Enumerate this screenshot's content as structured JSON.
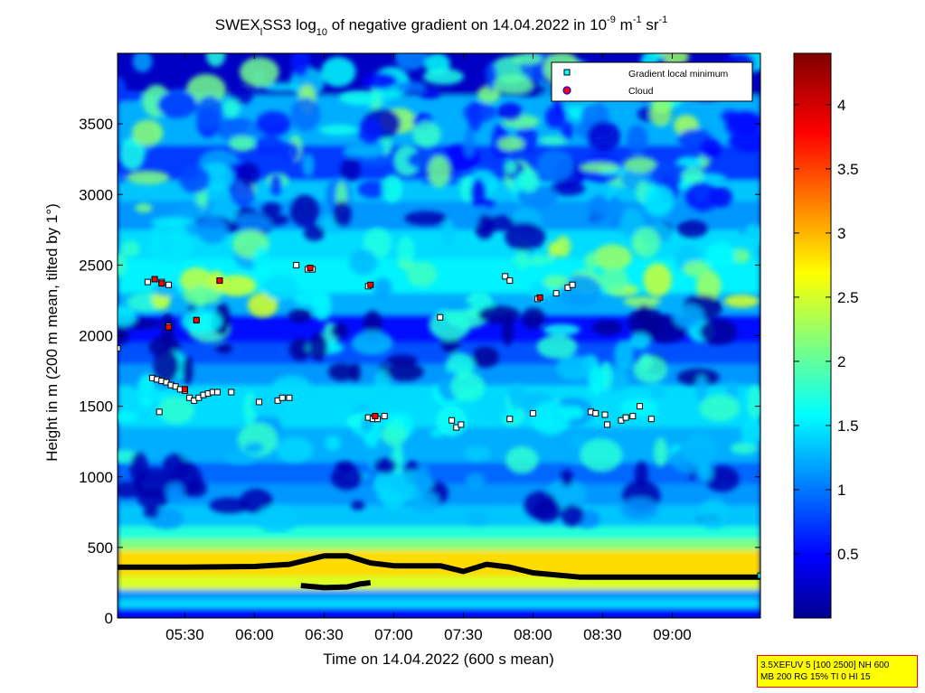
{
  "title": {
    "main": "SWEX",
    "sub1": "l",
    "mid": "SS3 log",
    "sub2": "10",
    "text": " of negative gradient on 14.04.2022 in 10",
    "sup1": "-9",
    "text2": " m",
    "sup2": "-1",
    "text3": " sr",
    "sup3": "-1"
  },
  "chart_data": {
    "type": "heatmap",
    "xlabel": "Time on 14.04.2022 (600 s mean)",
    "ylabel": "Height in m (200 m mean, tilted by 1°)",
    "x_ticks": [
      "05:30",
      "06:00",
      "06:30",
      "07:00",
      "07:30",
      "08:00",
      "08:30",
      "09:00"
    ],
    "x_tick_minutes": [
      330,
      360,
      390,
      420,
      450,
      480,
      510,
      540
    ],
    "xlim_minutes": [
      301,
      578
    ],
    "y_ticks": [
      "0",
      "500",
      "1000",
      "1500",
      "2000",
      "2500",
      "3000",
      "3500"
    ],
    "y_tick_values": [
      0,
      500,
      1000,
      1500,
      2000,
      2500,
      3000,
      3500
    ],
    "ylim": [
      0,
      4000
    ],
    "colorbar": {
      "ticks": [
        "0.5",
        "1",
        "1.5",
        "2",
        "2.5",
        "3",
        "3.5",
        "4"
      ],
      "tick_values": [
        0.5,
        1,
        1.5,
        2,
        2.5,
        3,
        3.5,
        4
      ],
      "range": [
        0,
        4.4
      ],
      "colormap": "jet"
    },
    "legend": {
      "placement": "top-right",
      "entries": [
        {
          "label": "Gradient local minimum",
          "marker": "square",
          "color": "#00ffff"
        },
        {
          "label": "Cloud",
          "marker": "circle",
          "color": "#ff0000"
        }
      ]
    },
    "boundary_layer_line": [
      [
        301,
        360
      ],
      [
        330,
        360
      ],
      [
        360,
        365
      ],
      [
        375,
        380
      ],
      [
        380,
        400
      ],
      [
        390,
        440
      ],
      [
        400,
        440
      ],
      [
        410,
        390
      ],
      [
        420,
        370
      ],
      [
        440,
        370
      ],
      [
        450,
        330
      ],
      [
        460,
        380
      ],
      [
        470,
        360
      ],
      [
        480,
        320
      ],
      [
        500,
        290
      ],
      [
        540,
        290
      ],
      [
        578,
        290
      ]
    ],
    "low_layer_segment": [
      [
        380,
        230
      ],
      [
        390,
        215
      ],
      [
        400,
        220
      ],
      [
        405,
        240
      ],
      [
        410,
        250
      ]
    ],
    "gradient_minima": [
      [
        301,
        1910
      ],
      [
        316,
        1700
      ],
      [
        318,
        1690
      ],
      [
        320,
        1680
      ],
      [
        322,
        1670
      ],
      [
        324,
        1650
      ],
      [
        326,
        1640
      ],
      [
        328,
        1620
      ],
      [
        330,
        1610
      ],
      [
        332,
        1560
      ],
      [
        334,
        1540
      ],
      [
        336,
        1560
      ],
      [
        338,
        1580
      ],
      [
        340,
        1590
      ],
      [
        342,
        1600
      ],
      [
        344,
        1600
      ],
      [
        350,
        1600
      ],
      [
        362,
        1530
      ],
      [
        370,
        1540
      ],
      [
        372,
        1560
      ],
      [
        375,
        1560
      ],
      [
        409,
        1420
      ],
      [
        411,
        1410
      ],
      [
        413,
        1410
      ],
      [
        416,
        1430
      ],
      [
        445,
        1400
      ],
      [
        447,
        1350
      ],
      [
        449,
        1370
      ],
      [
        470,
        1410
      ],
      [
        480,
        1450
      ],
      [
        505,
        1460
      ],
      [
        507,
        1450
      ],
      [
        511,
        1440
      ],
      [
        512,
        1370
      ],
      [
        518,
        1400
      ],
      [
        520,
        1420
      ],
      [
        523,
        1430
      ],
      [
        526,
        1500
      ],
      [
        531,
        1410
      ],
      [
        314,
        2380
      ],
      [
        317,
        2400
      ],
      [
        320,
        2380
      ],
      [
        323,
        2360
      ],
      [
        323,
        2070
      ],
      [
        335,
        2110
      ],
      [
        345,
        2390
      ],
      [
        378,
        2500
      ],
      [
        383,
        2470
      ],
      [
        385,
        2470
      ],
      [
        409,
        2350
      ],
      [
        440,
        2130
      ],
      [
        468,
        2420
      ],
      [
        470,
        2390
      ],
      [
        482,
        2260
      ],
      [
        490,
        2300
      ],
      [
        495,
        2340
      ],
      [
        497,
        2360
      ],
      [
        319,
        1460
      ]
    ],
    "cloud_points": [
      [
        317,
        2400
      ],
      [
        320,
        2370
      ],
      [
        323,
        2060
      ],
      [
        335,
        2110
      ],
      [
        345,
        2390
      ],
      [
        384,
        2480
      ],
      [
        410,
        2360
      ],
      [
        412,
        1430
      ],
      [
        483,
        2270
      ],
      [
        330,
        1620
      ]
    ]
  },
  "info_box": {
    "line1": "3.5XEFUV 5 [100 2500] NH 600",
    "line2": "MB 200 RG 15% TI 0 HI 15"
  }
}
